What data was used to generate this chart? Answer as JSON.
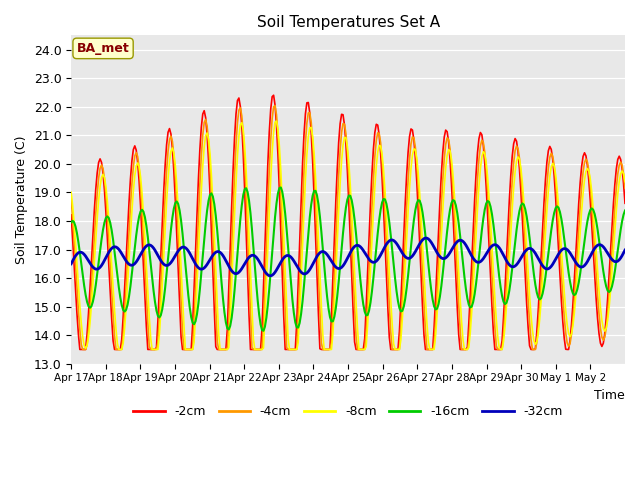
{
  "title": "Soil Temperatures Set A",
  "xlabel": "Time",
  "ylabel": "Soil Temperature (C)",
  "ylim": [
    13.0,
    24.5
  ],
  "yticks": [
    13.0,
    14.0,
    15.0,
    16.0,
    17.0,
    18.0,
    19.0,
    20.0,
    21.0,
    22.0,
    23.0,
    24.0
  ],
  "bg_color": "#e8e8e8",
  "colors": {
    "-2cm": "#ff0000",
    "-4cm": "#ff9900",
    "-8cm": "#ffff00",
    "-16cm": "#00cc00",
    "-32cm": "#0000bb"
  },
  "lws": {
    "-2cm": 1.2,
    "-4cm": 1.2,
    "-8cm": 1.2,
    "-16cm": 1.5,
    "-32cm": 2.0
  },
  "annotation_text": "BA_met",
  "annotation_color": "#880000",
  "annotation_bg": "#ffffcc",
  "x_tick_labels": [
    "Apr 17",
    "Apr 18",
    "Apr 19",
    "Apr 20",
    "Apr 21",
    "Apr 22",
    "Apr 23",
    "Apr 24",
    "Apr 25",
    "Apr 26",
    "Apr 27",
    "Apr 28",
    "Apr 29",
    "Apr 30",
    "May 1",
    "May 2"
  ],
  "legend_labels": [
    "-2cm",
    "-4cm",
    "-8cm",
    "-16cm",
    "-32cm"
  ],
  "legend_colors": [
    "#ff0000",
    "#ff9900",
    "#ffff00",
    "#00cc00",
    "#0000bb"
  ],
  "n_days": 16,
  "samples_per_day": 24
}
